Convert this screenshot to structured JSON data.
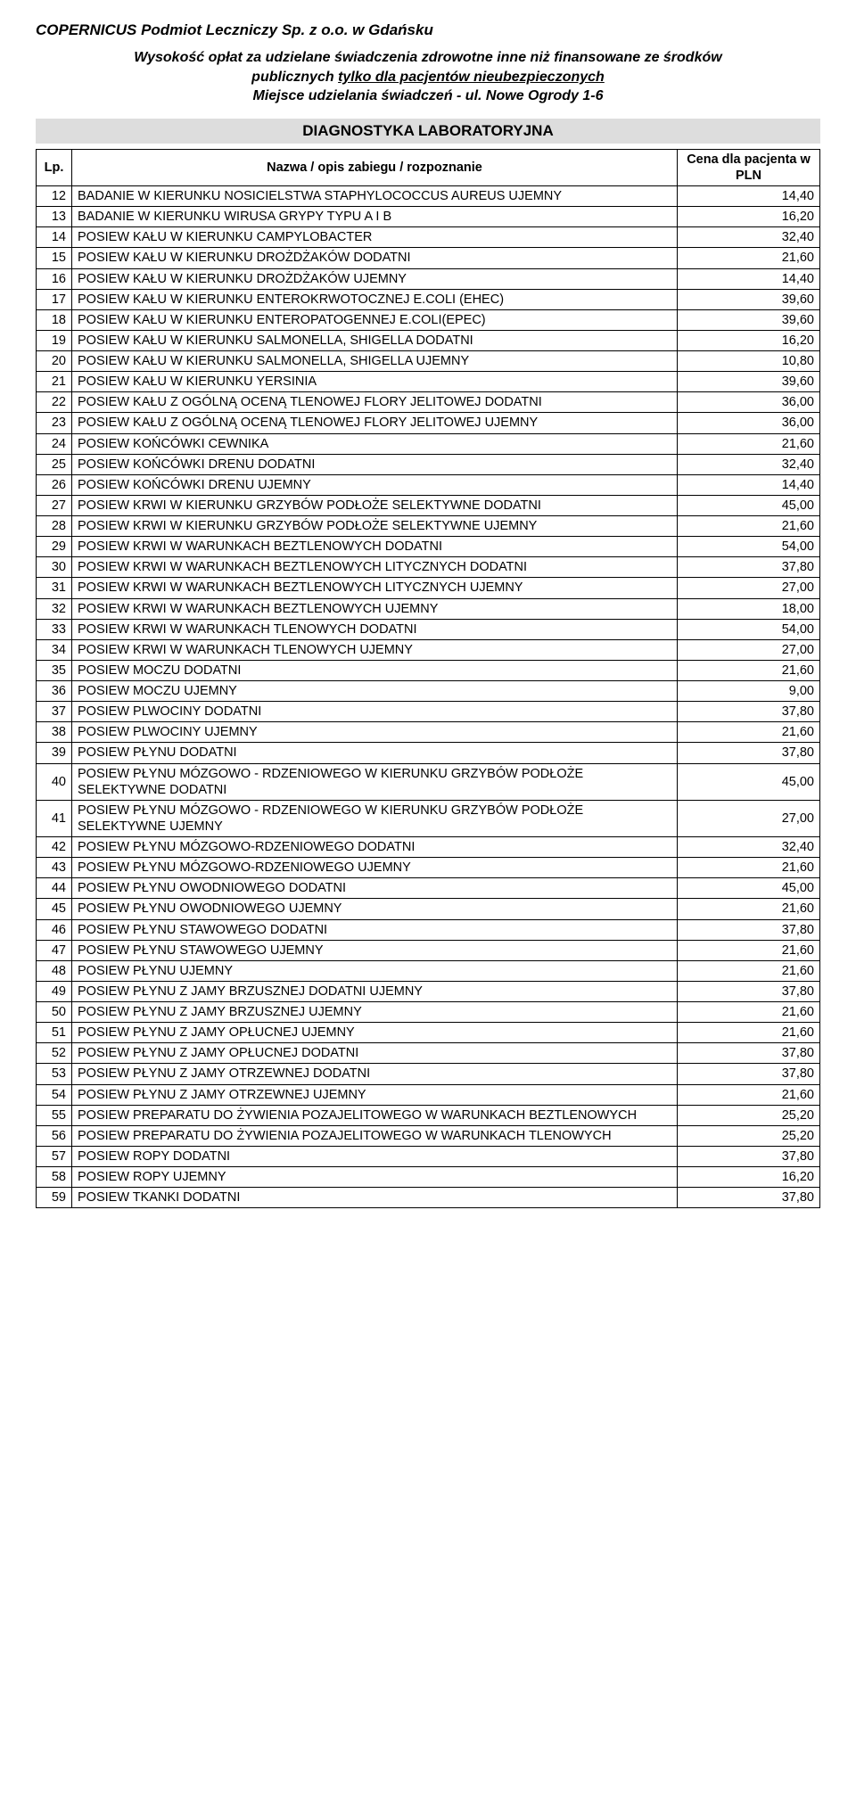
{
  "header": {
    "org": "COPERNICUS  Podmiot Leczniczy Sp. z o.o. w Gdańsku",
    "line1": "Wysokość opłat za udzielane świadczenia zdrowotne inne niż finansowane ze środków",
    "line2_a": "publicznych ",
    "line2_u": "tylko dla pacjentów nieubezpieczonych",
    "line3": "Miejsce udzielania świadczeń - ul. Nowe Ogrody 1-6",
    "section": "DIAGNOSTYKA LABORATORYJNA"
  },
  "columns": {
    "lp": "Lp.",
    "name": "Nazwa / opis zabiegu / rozpoznanie",
    "price": "Cena dla pacjenta w PLN"
  },
  "rows": [
    {
      "lp": "12",
      "name": "BADANIE W KIERUNKU NOSICIELSTWA STAPHYLOCOCCUS AUREUS UJEMNY",
      "val": "14,40"
    },
    {
      "lp": "13",
      "name": "BADANIE W KIERUNKU WIRUSA GRYPY TYPU A I B",
      "val": "16,20"
    },
    {
      "lp": "14",
      "name": "POSIEW KAŁU W KIERUNKU CAMPYLOBACTER",
      "val": "32,40"
    },
    {
      "lp": "15",
      "name": "POSIEW KAŁU W KIERUNKU DROŻDŻAKÓW DODATNI",
      "val": "21,60"
    },
    {
      "lp": "16",
      "name": "POSIEW KAŁU W KIERUNKU DROŻDŻAKÓW UJEMNY",
      "val": "14,40"
    },
    {
      "lp": "17",
      "name": "POSIEW KAŁU W KIERUNKU ENTEROKRWOTOCZNEJ E.COLI (EHEC)",
      "val": "39,60"
    },
    {
      "lp": "18",
      "name": "POSIEW KAŁU W KIERUNKU ENTEROPATOGENNEJ E.COLI(EPEC)",
      "val": "39,60"
    },
    {
      "lp": "19",
      "name": "POSIEW KAŁU W KIERUNKU SALMONELLA, SHIGELLA DODATNI",
      "val": "16,20"
    },
    {
      "lp": "20",
      "name": "POSIEW KAŁU W KIERUNKU SALMONELLA, SHIGELLA UJEMNY",
      "val": "10,80"
    },
    {
      "lp": "21",
      "name": "POSIEW KAŁU W KIERUNKU YERSINIA",
      "val": "39,60"
    },
    {
      "lp": "22",
      "name": "POSIEW KAŁU Z OGÓLNĄ OCENĄ TLENOWEJ FLORY JELITOWEJ DODATNI",
      "val": "36,00"
    },
    {
      "lp": "23",
      "name": "POSIEW KAŁU Z OGÓLNĄ OCENĄ TLENOWEJ FLORY JELITOWEJ UJEMNY",
      "val": "36,00"
    },
    {
      "lp": "24",
      "name": "POSIEW KOŃCÓWKI CEWNIKA",
      "val": "21,60"
    },
    {
      "lp": "25",
      "name": "POSIEW KOŃCÓWKI DRENU DODATNI",
      "val": "32,40"
    },
    {
      "lp": "26",
      "name": "POSIEW KOŃCÓWKI DRENU UJEMNY",
      "val": "14,40"
    },
    {
      "lp": "27",
      "name": "POSIEW KRWI W KIERUNKU GRZYBÓW PODŁOŻE SELEKTYWNE DODATNI",
      "val": "45,00"
    },
    {
      "lp": "28",
      "name": "POSIEW KRWI W KIERUNKU GRZYBÓW PODŁOŻE SELEKTYWNE UJEMNY",
      "val": "21,60"
    },
    {
      "lp": "29",
      "name": "POSIEW KRWI W WARUNKACH  BEZTLENOWYCH DODATNI",
      "val": "54,00"
    },
    {
      "lp": "30",
      "name": "POSIEW KRWI W WARUNKACH  BEZTLENOWYCH LITYCZNYCH DODATNI",
      "val": "37,80"
    },
    {
      "lp": "31",
      "name": "POSIEW KRWI W WARUNKACH  BEZTLENOWYCH LITYCZNYCH UJEMNY",
      "val": "27,00"
    },
    {
      "lp": "32",
      "name": "POSIEW KRWI W WARUNKACH  BEZTLENOWYCH UJEMNY",
      "val": "18,00"
    },
    {
      "lp": "33",
      "name": "POSIEW KRWI W WARUNKACH TLENOWYCH DODATNI",
      "val": "54,00"
    },
    {
      "lp": "34",
      "name": "POSIEW KRWI W WARUNKACH TLENOWYCH UJEMNY",
      "val": "27,00"
    },
    {
      "lp": "35",
      "name": "POSIEW MOCZU DODATNI",
      "val": "21,60"
    },
    {
      "lp": "36",
      "name": "POSIEW MOCZU UJEMNY",
      "val": "9,00"
    },
    {
      "lp": "37",
      "name": "POSIEW PLWOCINY DODATNI",
      "val": "37,80"
    },
    {
      "lp": "38",
      "name": "POSIEW PLWOCINY UJEMNY",
      "val": "21,60"
    },
    {
      "lp": "39",
      "name": "POSIEW PŁYNU DODATNI",
      "val": "37,80"
    },
    {
      "lp": "40",
      "name": "POSIEW PŁYNU MÓZGOWO - RDZENIOWEGO W KIERUNKU GRZYBÓW PODŁOŻE SELEKTYWNE DODATNI",
      "val": "45,00"
    },
    {
      "lp": "41",
      "name": "POSIEW PŁYNU MÓZGOWO - RDZENIOWEGO W KIERUNKU GRZYBÓW PODŁOŻE SELEKTYWNE UJEMNY",
      "val": "27,00"
    },
    {
      "lp": "42",
      "name": "POSIEW PŁYNU MÓZGOWO-RDZENIOWEGO DODATNI",
      "val": "32,40"
    },
    {
      "lp": "43",
      "name": "POSIEW PŁYNU MÓZGOWO-RDZENIOWEGO UJEMNY",
      "val": "21,60"
    },
    {
      "lp": "44",
      "name": "POSIEW PŁYNU OWODNIOWEGO DODATNI",
      "val": "45,00"
    },
    {
      "lp": "45",
      "name": "POSIEW PŁYNU OWODNIOWEGO UJEMNY",
      "val": "21,60"
    },
    {
      "lp": "46",
      "name": "POSIEW PŁYNU STAWOWEGO DODATNI",
      "val": "37,80"
    },
    {
      "lp": "47",
      "name": "POSIEW PŁYNU STAWOWEGO UJEMNY",
      "val": "21,60"
    },
    {
      "lp": "48",
      "name": "POSIEW PŁYNU UJEMNY",
      "val": "21,60"
    },
    {
      "lp": "49",
      "name": "POSIEW PŁYNU Z JAMY BRZUSZNEJ DODATNI UJEMNY",
      "val": "37,80"
    },
    {
      "lp": "50",
      "name": "POSIEW PŁYNU Z JAMY BRZUSZNEJ UJEMNY",
      "val": "21,60"
    },
    {
      "lp": "51",
      "name": "POSIEW PŁYNU Z JAMY OPŁUCNEJ  UJEMNY",
      "val": "21,60"
    },
    {
      "lp": "52",
      "name": "POSIEW PŁYNU Z JAMY OPŁUCNEJ DODATNI",
      "val": "37,80"
    },
    {
      "lp": "53",
      "name": "POSIEW PŁYNU Z JAMY OTRZEWNEJ DODATNI",
      "val": "37,80"
    },
    {
      "lp": "54",
      "name": "POSIEW PŁYNU Z JAMY OTRZEWNEJ UJEMNY",
      "val": "21,60"
    },
    {
      "lp": "55",
      "name": "POSIEW PREPARATU DO ŻYWIENIA POZAJELITOWEGO W WARUNKACH BEZTLENOWYCH",
      "val": "25,20"
    },
    {
      "lp": "56",
      "name": "POSIEW PREPARATU DO ŻYWIENIA POZAJELITOWEGO W WARUNKACH TLENOWYCH",
      "val": "25,20"
    },
    {
      "lp": "57",
      "name": "POSIEW ROPY DODATNI",
      "val": "37,80"
    },
    {
      "lp": "58",
      "name": "POSIEW ROPY UJEMNY",
      "val": "16,20"
    },
    {
      "lp": "59",
      "name": "POSIEW TKANKI DODATNI",
      "val": "37,80"
    }
  ]
}
